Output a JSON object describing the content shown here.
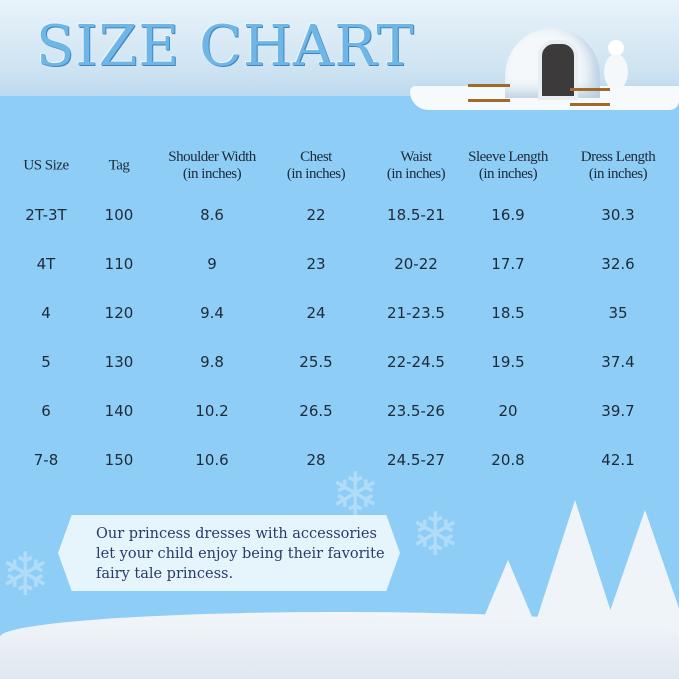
{
  "title": "SIZE CHART",
  "colors": {
    "background": "#8dcdf6",
    "title": "#6fb6e6",
    "text": "#1e2a38"
  },
  "table": {
    "headers": [
      {
        "line1": "US Size",
        "line2": ""
      },
      {
        "line1": "Tag",
        "line2": ""
      },
      {
        "line1": "Shoulder Width",
        "line2": "(in inches)"
      },
      {
        "line1": "Chest",
        "line2": "(in inches)"
      },
      {
        "line1": "Waist",
        "line2": "(in inches)"
      },
      {
        "line1": "Sleeve Length",
        "line2": "(in inches)"
      },
      {
        "line1": "Dress Length",
        "line2": "(in inches)"
      }
    ],
    "rows": [
      [
        "2T-3T",
        "100",
        "8.6",
        "22",
        "18.5-21",
        "16.9",
        "30.3"
      ],
      [
        "4T",
        "110",
        "9",
        "23",
        "20-22",
        "17.7",
        "32.6"
      ],
      [
        "4",
        "120",
        "9.4",
        "24",
        "21-23.5",
        "18.5",
        "35"
      ],
      [
        "5",
        "130",
        "9.8",
        "25.5",
        "22-24.5",
        "19.5",
        "37.4"
      ],
      [
        "6",
        "140",
        "10.2",
        "26.5",
        "23.5-26",
        "20",
        "39.7"
      ],
      [
        "7-8",
        "150",
        "10.6",
        "28",
        "24.5-27",
        "20.8",
        "42.1"
      ]
    ]
  },
  "banner": {
    "lines": [
      "Our princess dresses with accessories",
      "let your child enjoy being their favorite",
      "fairy tale princess."
    ]
  }
}
